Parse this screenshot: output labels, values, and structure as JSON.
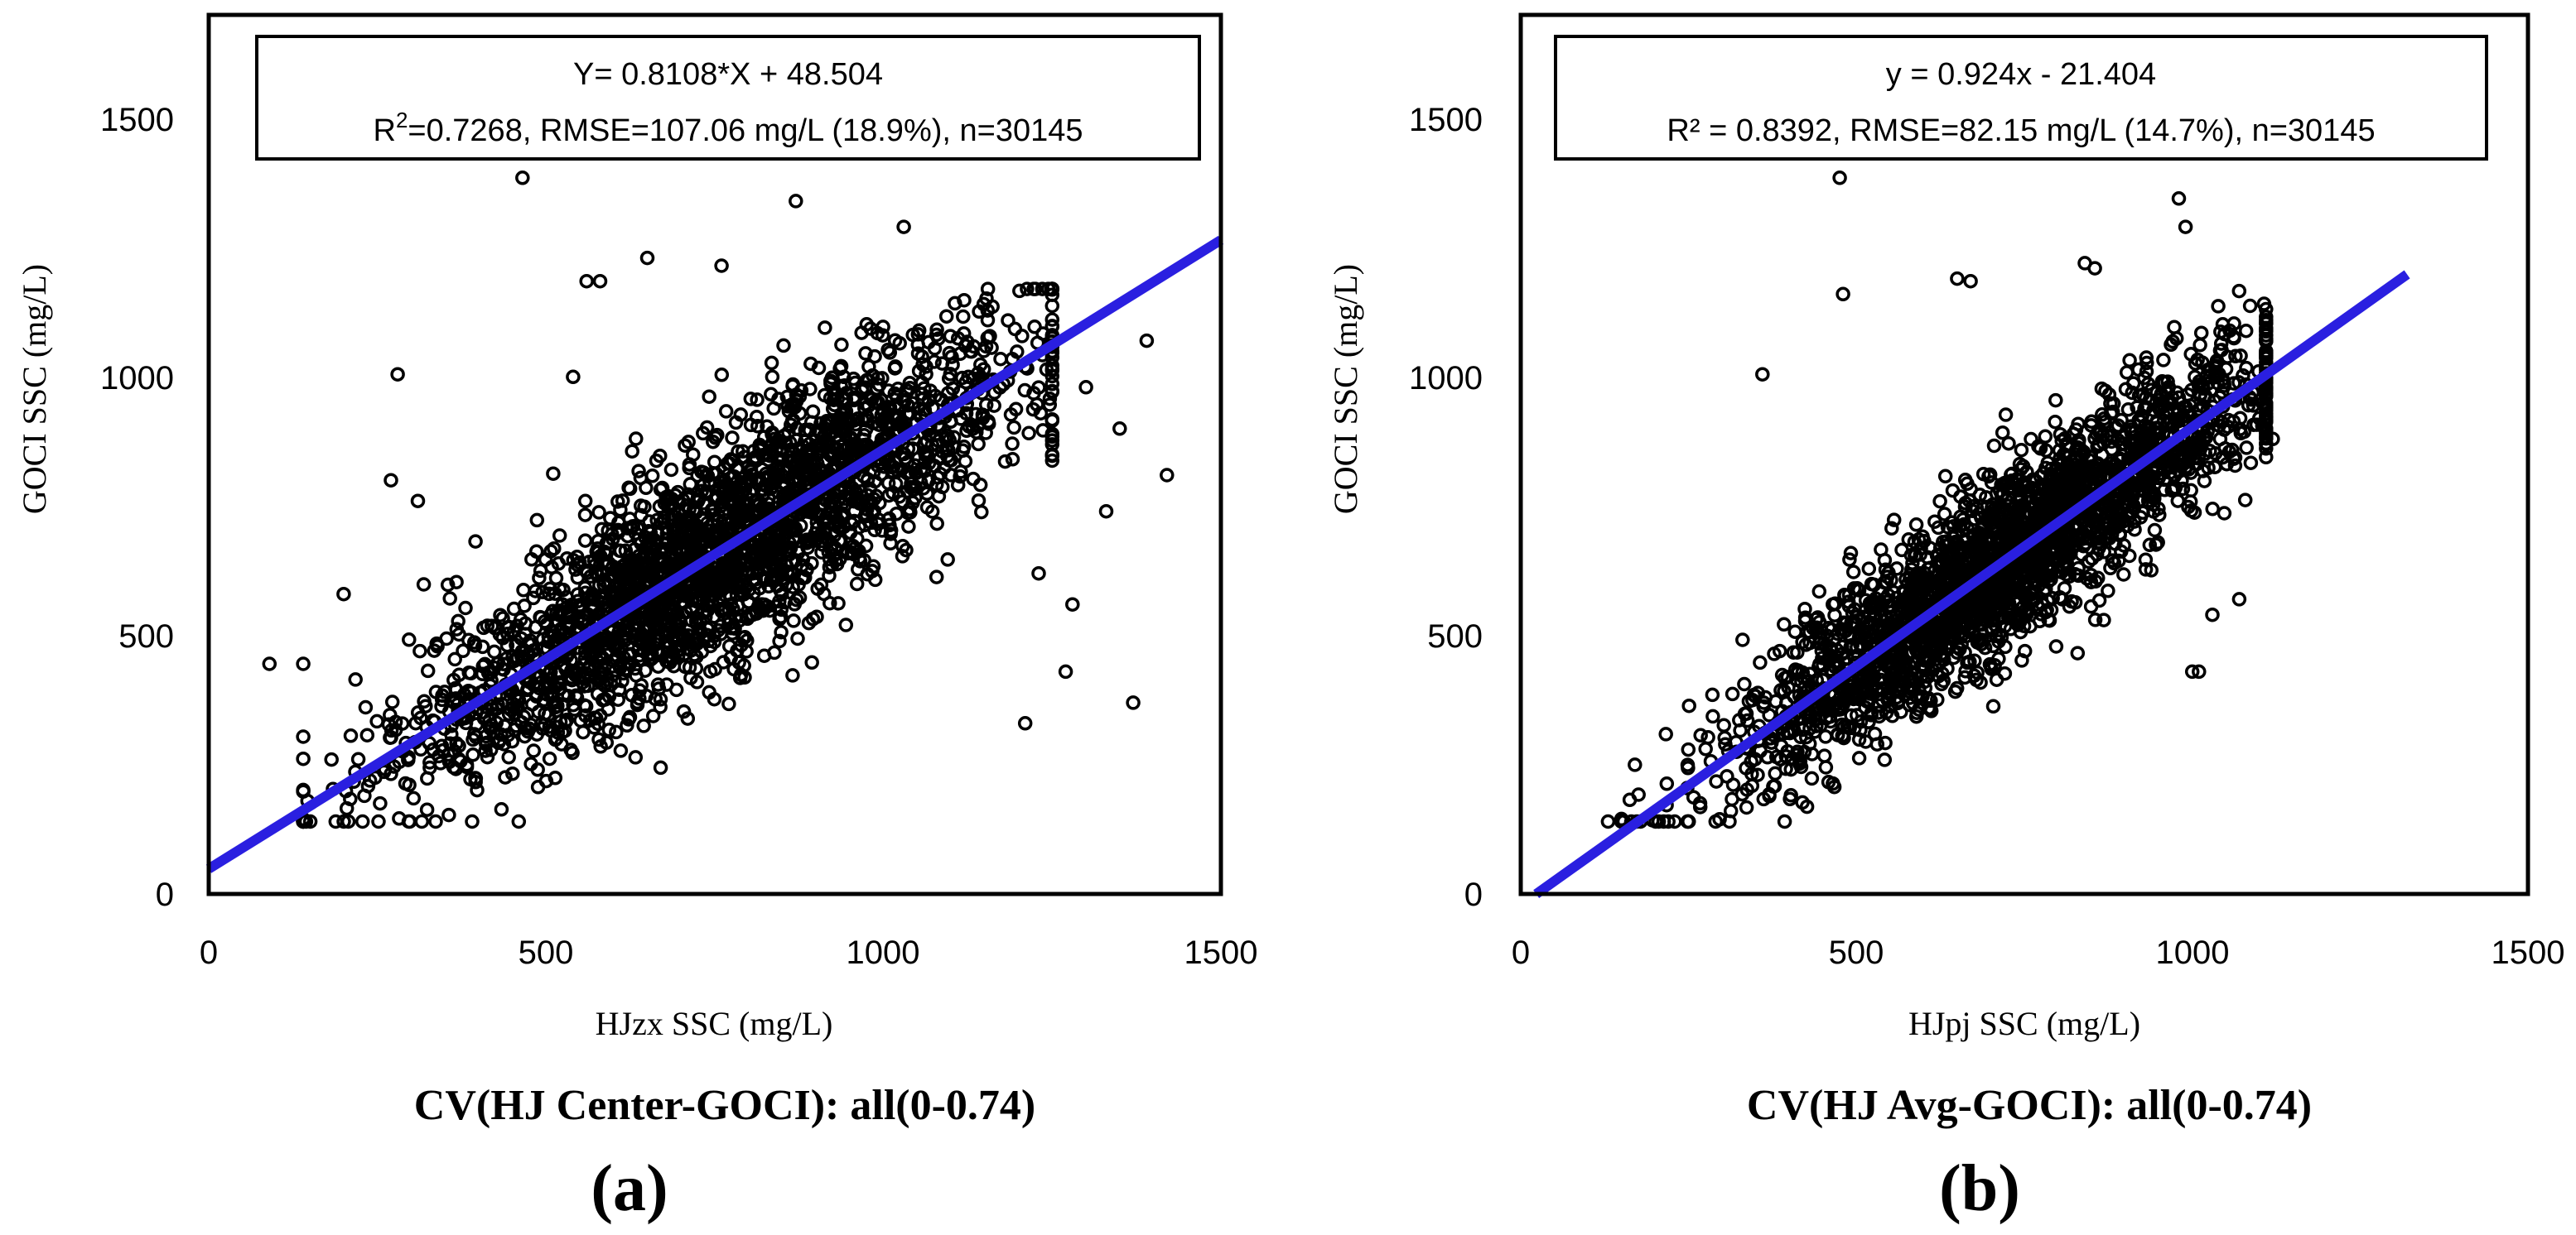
{
  "chart_data": [
    {
      "type": "scatter",
      "panel_label": "(a)",
      "caption": "CV(HJ Center-GOCI): all(0-0.74)",
      "xlabel": "HJzx SSC (mg/L)",
      "ylabel": "GOCI SSC (mg/L)",
      "xlim": [
        0,
        1500
      ],
      "ylim": [
        0,
        1700
      ],
      "xticks": [
        "0",
        "500",
        "1000",
        "1500"
      ],
      "yticks": [
        "0",
        "500",
        "1000",
        "1500"
      ],
      "equation_line1": "Y= 0.8108*X + 48.504",
      "r2_prefix": "R",
      "r2_sup": "2",
      "stats_line": "=0.7268, RMSE=107.06 mg/L (18.9%), n=30145",
      "fit": {
        "slope": 0.8108,
        "intercept": 48.504,
        "x_range": [
          0,
          1500
        ],
        "color": "#2a1fe0"
      },
      "point_cloud": {
        "n": 30145,
        "x_mean": 760,
        "x_sd": 230,
        "slope": 0.8108,
        "intercept": 48.504,
        "noise_sd": 107,
        "x_min": 140,
        "x_max": 1250,
        "y_min": 140,
        "y_max": 1170
      },
      "outliers": [
        [
          465,
          1385
        ],
        [
          870,
          1340
        ],
        [
          1030,
          1290
        ],
        [
          650,
          1230
        ],
        [
          760,
          1215
        ],
        [
          560,
          1185
        ],
        [
          580,
          1185
        ],
        [
          280,
          1005
        ],
        [
          540,
          1000
        ],
        [
          90,
          445
        ],
        [
          1210,
          330
        ],
        [
          1370,
          370
        ],
        [
          1420,
          810
        ],
        [
          1390,
          1070
        ],
        [
          1280,
          560
        ],
        [
          1270,
          430
        ],
        [
          1330,
          740
        ],
        [
          1300,
          980
        ],
        [
          1350,
          900
        ],
        [
          270,
          800
        ],
        [
          310,
          760
        ],
        [
          200,
          580
        ],
        [
          1230,
          620
        ]
      ]
    },
    {
      "type": "scatter",
      "panel_label": "(b)",
      "caption": "CV(HJ Avg-GOCI): all(0-0.74)",
      "xlabel": "HJpj SSC (mg/L)",
      "ylabel": "GOCI SSC (mg/L)",
      "xlim": [
        0,
        1500
      ],
      "ylim": [
        0,
        1700
      ],
      "xticks": [
        "0",
        "500",
        "1000",
        "1500"
      ],
      "yticks": [
        "0",
        "500",
        "1000",
        "1500"
      ],
      "equation_line1": "y = 0.924x - 21.404",
      "r2_prefix": "R²",
      "r2_sup": "",
      "stats_line": " = 0.8392, RMSE=82.15 mg/L (14.7%), n=30145",
      "fit": {
        "slope": 0.924,
        "intercept": -21.404,
        "x_range": [
          23,
          1320
        ],
        "color": "#2a1fe0"
      },
      "point_cloud": {
        "n": 30145,
        "x_mean": 720,
        "x_sd": 200,
        "slope": 0.924,
        "intercept": -21.404,
        "noise_sd": 82,
        "x_min": 150,
        "x_max": 1110,
        "y_min": 140,
        "y_max": 1170
      },
      "outliers": [
        [
          475,
          1385
        ],
        [
          980,
          1345
        ],
        [
          990,
          1290
        ],
        [
          480,
          1160
        ],
        [
          650,
          1190
        ],
        [
          670,
          1185
        ],
        [
          840,
          1220
        ],
        [
          855,
          1210
        ],
        [
          360,
          1005
        ],
        [
          1030,
          540
        ],
        [
          1000,
          430
        ],
        [
          1010,
          430
        ],
        [
          1070,
          570
        ],
        [
          1120,
          880
        ],
        [
          1100,
          920
        ],
        [
          130,
          140
        ],
        [
          150,
          145
        ]
      ]
    }
  ]
}
